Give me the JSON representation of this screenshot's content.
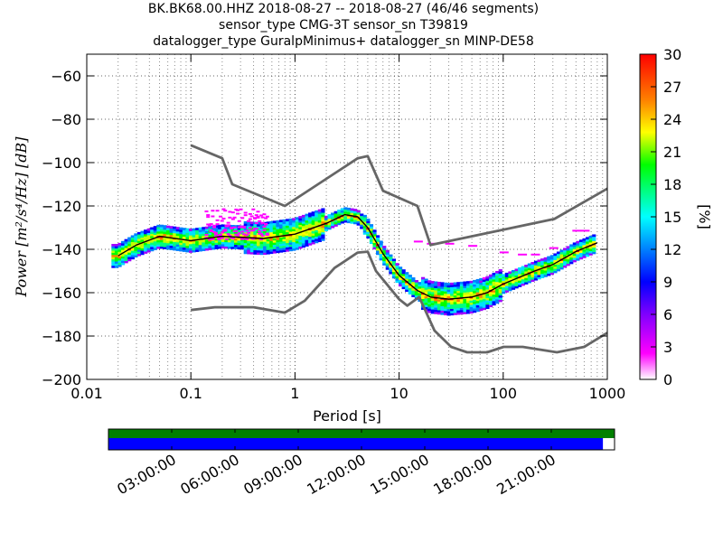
{
  "title_lines": [
    "BK.BK68.00.HHZ   2018-08-27 -- 2018-08-27  (46/46 segments)",
    "sensor_type CMG-3T sensor_sn T39819",
    "datalogger_type GuralpMinimus+ datalogger_sn MINP-DE58"
  ],
  "chart_data": [
    {
      "type": "heatmap",
      "title": "BK.BK68.00.HHZ   2018-08-27 -- 2018-08-27  (46/46 segments)",
      "xlabel": "Period [s]",
      "ylabel": "Power [m²/s⁴/Hz] [dB]",
      "x_scale": "log",
      "xlim": [
        0.01,
        1000
      ],
      "ylim": [
        -200,
        -50
      ],
      "x_ticks": [
        0.01,
        0.1,
        1,
        10,
        100,
        1000
      ],
      "x_tick_labels": [
        "0.01",
        "0.1",
        "1",
        "10",
        "100",
        "1000"
      ],
      "y_ticks": [
        -200,
        -180,
        -160,
        -140,
        -120,
        -100,
        -80,
        -60
      ],
      "y_tick_labels": [
        "−200",
        "−180",
        "−160",
        "−140",
        "−120",
        "−100",
        "−80",
        "−60"
      ],
      "grid": true,
      "colorbar": {
        "label": "[%]",
        "range": [
          0,
          30
        ],
        "ticks": [
          0,
          3,
          6,
          9,
          12,
          15,
          18,
          21,
          24,
          27,
          30
        ]
      },
      "series": [
        {
          "name": "",
          "color": "#666666",
          "points": [
            [
              0.1,
              -92
            ],
            [
              0.2,
              -98
            ],
            [
              0.25,
              -110
            ],
            [
              0.8,
              -120
            ],
            [
              4,
              -98
            ],
            [
              5,
              -97
            ],
            [
              7,
              -113
            ],
            [
              15,
              -120
            ],
            [
              20,
              -138
            ],
            [
              310,
              -126
            ],
            [
              1000,
              -112
            ]
          ]
        },
        {
          "name": "",
          "color": "#666666",
          "points": [
            [
              0.1,
              -168
            ],
            [
              0.17,
              -166.7
            ],
            [
              0.4,
              -166.7
            ],
            [
              0.8,
              -169.2
            ],
            [
              1.24,
              -163.7
            ],
            [
              2.4,
              -148.6
            ],
            [
              4,
              -141.5
            ],
            [
              5,
              -141.1
            ],
            [
              6,
              -150
            ],
            [
              10,
              -163
            ],
            [
              12,
              -166
            ],
            [
              15.6,
              -162
            ],
            [
              21.9,
              -177.5
            ],
            [
              31.6,
              -185
            ],
            [
              45,
              -187.5
            ],
            [
              70,
              -187.5
            ],
            [
              101,
              -185
            ],
            [
              154,
              -185
            ],
            [
              328,
              -187.5
            ],
            [
              600,
              -185
            ],
            [
              1000,
              -178.5
            ]
          ]
        },
        {
          "name": "",
          "color": "#000000",
          "points": [
            [
              0.02,
              -143
            ],
            [
              0.03,
              -138
            ],
            [
              0.05,
              -134
            ],
            [
              0.1,
              -136
            ],
            [
              0.2,
              -134
            ],
            [
              0.5,
              -135
            ],
            [
              1,
              -133
            ],
            [
              2,
              -128
            ],
            [
              3,
              -124
            ],
            [
              4,
              -125
            ],
            [
              5,
              -130
            ],
            [
              7,
              -142
            ],
            [
              10,
              -152
            ],
            [
              15,
              -159
            ],
            [
              20,
              -162
            ],
            [
              30,
              -163
            ],
            [
              50,
              -162
            ],
            [
              70,
              -160
            ],
            [
              100,
              -156
            ],
            [
              200,
              -150
            ],
            [
              300,
              -147
            ],
            [
              500,
              -141
            ],
            [
              800,
              -137
            ]
          ]
        }
      ]
    },
    {
      "type": "bar",
      "x_tick_labels": [
        "03:00:00",
        "06:00:00",
        "09:00:00",
        "12:00:00",
        "15:00:00",
        "18:00:00",
        "21:00:00"
      ],
      "series": [
        {
          "name": "",
          "color": "#008000",
          "coverage": [
            0,
            1
          ]
        },
        {
          "name": "",
          "color": "#0000ff",
          "coverage": [
            0,
            0.977
          ]
        }
      ]
    }
  ]
}
